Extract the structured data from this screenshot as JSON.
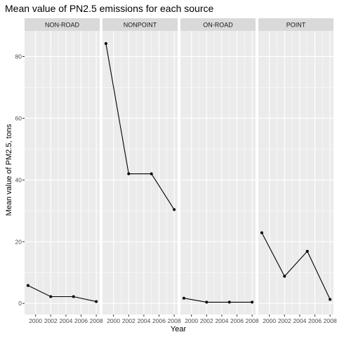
{
  "chart_data": {
    "type": "line",
    "title": "Mean value of PN2.5 emissions for each source",
    "xlabel": "Year",
    "ylabel": "Mean value of PM2.5, tons",
    "x": [
      1999,
      2002,
      2005,
      2008
    ],
    "x_tick_labels": [
      "2000",
      "2002",
      "2004",
      "2006",
      "2008"
    ],
    "y_tick_labels": [
      "0",
      "20",
      "40",
      "60",
      "80"
    ],
    "ylim": [
      -3.6,
      88.3
    ],
    "xlim": [
      1998.55,
      2008.45
    ],
    "grid": true,
    "facets": [
      {
        "strip": "NON-ROAD",
        "values": [
          5.8,
          2.2,
          2.2,
          0.6
        ]
      },
      {
        "strip": "NONPOINT",
        "values": [
          84.2,
          42.0,
          42.0,
          30.4
        ]
      },
      {
        "strip": "ON-ROAD",
        "values": [
          1.7,
          0.4,
          0.4,
          0.4
        ]
      },
      {
        "strip": "POINT",
        "values": [
          22.9,
          8.8,
          16.9,
          1.3
        ]
      }
    ]
  }
}
